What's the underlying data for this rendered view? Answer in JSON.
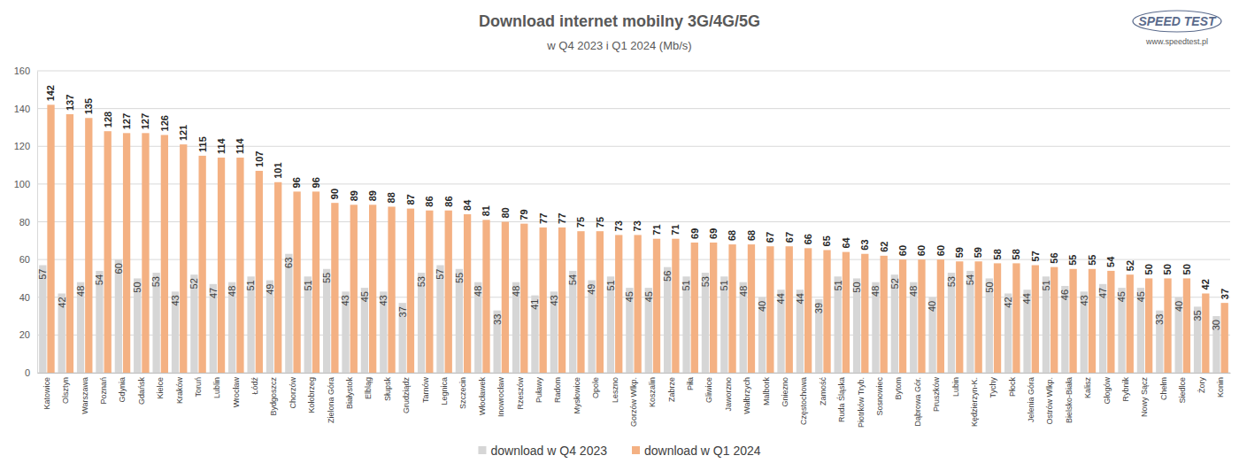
{
  "chart_data": {
    "type": "bar",
    "title": "Download internet mobilny 3G/4G/5G",
    "subtitle": "w Q4 2023 i Q1 2024 (Mb/s)",
    "annotations": [
      "SPEED TEST",
      "www.speedtest.pl"
    ],
    "categories": [
      "Katowice",
      "Olsztyn",
      "Warszawa",
      "Poznań",
      "Gdynia",
      "Gdańsk",
      "Kielce",
      "Kraków",
      "Toruń",
      "Lublin",
      "Wrocław",
      "Łódź",
      "Bydgoszcz",
      "Chorzów",
      "Kołobrzeg",
      "Zielona Góra",
      "Białystok",
      "Elbląg",
      "Słupsk",
      "Grudziądz",
      "Tarnów",
      "Legnica",
      "Szczecin",
      "Włocławek",
      "Inowrocław",
      "Rzeszów",
      "Puławy",
      "Radom",
      "Mysłowice",
      "Opole",
      "Leszno",
      "Gorzów Wlkp.",
      "Koszalin",
      "Zabrze",
      "Piła",
      "Gliwice",
      "Jaworzno",
      "Wałbrzych",
      "Malbork",
      "Gniezno",
      "Częstochowa",
      "Zamość",
      "Ruda Śląska",
      "Piotrków Tryb.",
      "Sosnowiec",
      "Bytom",
      "Dąbrowa Gór.",
      "Pruszków",
      "Lubin",
      "Kędzierzyn-K.",
      "Tychy",
      "Płock",
      "Jelenia Góra",
      "Ostrów Wlkp.",
      "Bielsko-Biała",
      "Kalisz",
      "Głogów",
      "Rybnik",
      "Nowy Sącz",
      "Chełm",
      "Siedlce",
      "Żory",
      "Konin"
    ],
    "series": [
      {
        "name": "download w Q4 2023",
        "color": "#d6d6d6",
        "values": [
          57,
          42,
          48,
          54,
          60,
          50,
          53,
          43,
          52,
          47,
          48,
          51,
          49,
          63,
          51,
          55,
          43,
          45,
          43,
          37,
          53,
          57,
          55,
          48,
          33,
          48,
          41,
          43,
          54,
          49,
          51,
          45,
          45,
          56,
          51,
          53,
          51,
          48,
          40,
          44,
          44,
          39,
          51,
          50,
          48,
          52,
          48,
          40,
          53,
          54,
          50,
          42,
          44,
          51,
          46,
          43,
          47,
          45,
          45,
          33,
          40,
          35,
          30
        ]
      },
      {
        "name": "download w Q1 2024",
        "color": "#f4b183",
        "values": [
          142,
          137,
          135,
          128,
          127,
          127,
          126,
          121,
          115,
          114,
          114,
          107,
          101,
          96,
          96,
          90,
          89,
          89,
          88,
          87,
          86,
          86,
          84,
          81,
          80,
          79,
          77,
          77,
          75,
          75,
          73,
          73,
          71,
          71,
          69,
          69,
          68,
          68,
          67,
          67,
          66,
          65,
          64,
          63,
          62,
          60,
          60,
          60,
          59,
          59,
          58,
          58,
          57,
          56,
          55,
          55,
          54,
          52,
          50,
          50,
          50,
          42,
          37
        ]
      }
    ],
    "ylim": [
      0,
      160
    ],
    "yticks": [
      0,
      20,
      40,
      60,
      80,
      100,
      120,
      140,
      160
    ],
    "grid": true,
    "legend": "bottom",
    "data_labels": true
  }
}
